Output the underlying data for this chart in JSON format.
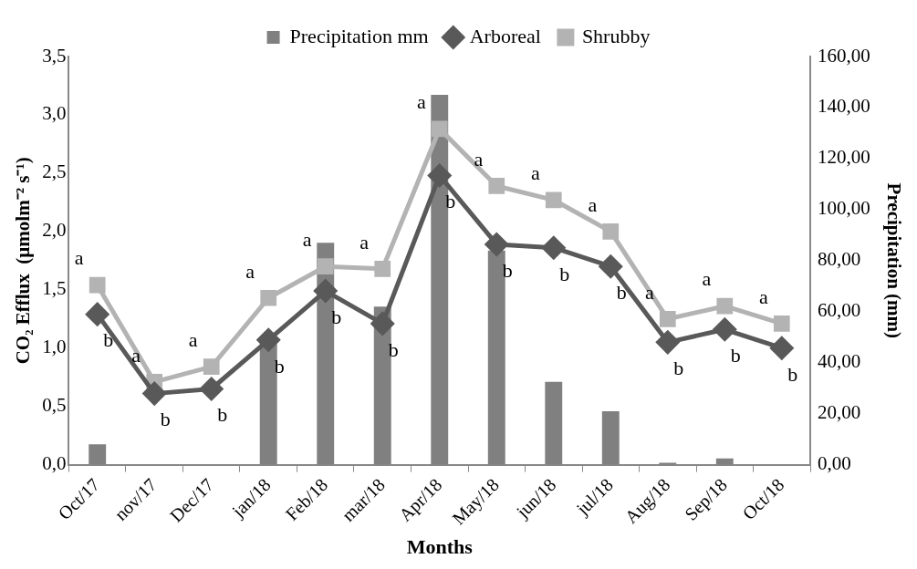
{
  "chart_data": {
    "type": "line",
    "xlabel": "Months",
    "ylabel": "CO₂ Efflux  (µmolm⁻² s⁻¹)",
    "y2label": "Precipitation (mm)",
    "categories": [
      "Oct/17",
      "nov/17",
      "Dec/17",
      "jan/18",
      "Feb/18",
      "mar/18",
      "Apr/18",
      "May/18",
      "jun/18",
      "jul/18",
      "Aug/18",
      "Sep/18",
      "Oct/18"
    ],
    "series": [
      {
        "name": "Precipitation mm",
        "type": "bar",
        "axis": "y2",
        "color": "#808080",
        "values": [
          8,
          0,
          0,
          49,
          87,
          62,
          145,
          84,
          32.5,
          21,
          0.8,
          2.5,
          0
        ]
      },
      {
        "name": "Arboreal",
        "marker": "diamond",
        "color": "#595959",
        "values": [
          1.29,
          0.61,
          0.65,
          1.07,
          1.49,
          1.21,
          2.48,
          1.89,
          1.86,
          1.7,
          1.05,
          1.16,
          1.0
        ],
        "value_labels": [
          "b",
          "b",
          "b",
          "b",
          "b",
          "b",
          "b",
          "b",
          "b",
          "b",
          "b",
          "b",
          "b"
        ]
      },
      {
        "name": "Shrubby",
        "marker": "square",
        "color": "#b3b3b3",
        "values": [
          1.54,
          0.71,
          0.84,
          1.43,
          1.7,
          1.68,
          2.88,
          2.39,
          2.27,
          2.0,
          1.25,
          1.36,
          1.21
        ],
        "value_labels": [
          "a",
          "a",
          "a",
          "a",
          "a",
          "a",
          "a",
          "a",
          "a",
          "a",
          "a",
          "a",
          "a"
        ]
      }
    ],
    "ylim": [
      0,
      3.5
    ],
    "yticks": [
      {
        "value": 0,
        "label": "0,0"
      },
      {
        "value": 0.5,
        "label": "0,5"
      },
      {
        "value": 1,
        "label": "1,0"
      },
      {
        "value": 1.5,
        "label": "1,5"
      },
      {
        "value": 2,
        "label": "2,0"
      },
      {
        "value": 2.5,
        "label": "2,5"
      },
      {
        "value": 3,
        "label": "3,0"
      },
      {
        "value": 3.5,
        "label": "3,5"
      }
    ],
    "y2lim": [
      0,
      160
    ],
    "y2ticks": [
      {
        "value": 0,
        "label": "0,00"
      },
      {
        "value": 20,
        "label": "20,00"
      },
      {
        "value": 40,
        "label": "40,00"
      },
      {
        "value": 60,
        "label": "60,00"
      },
      {
        "value": 80,
        "label": "80,00"
      },
      {
        "value": 100,
        "label": "100,00"
      },
      {
        "value": 120,
        "label": "120,00"
      },
      {
        "value": 140,
        "label": "140,00"
      },
      {
        "value": 160,
        "label": "160,00"
      }
    ],
    "grid": false,
    "legend": "top",
    "line_style": "solid"
  }
}
